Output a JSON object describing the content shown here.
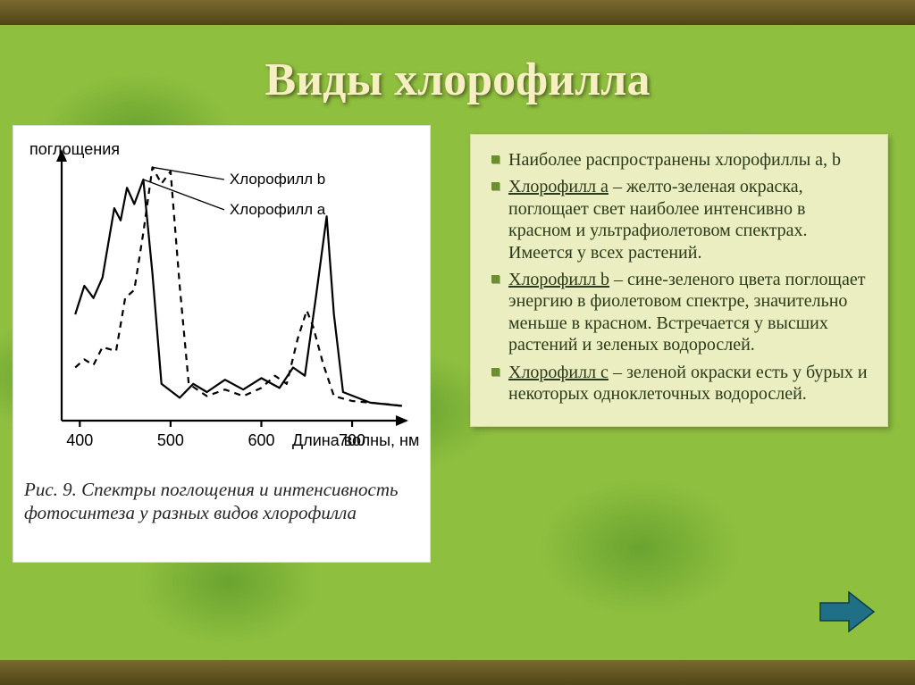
{
  "slide": {
    "title": "Виды хлорофилла",
    "background_base": "#8fbf3f",
    "bar_color_top": "#7a6a2e",
    "bar_color_bottom": "#4f4518",
    "title_color": "#f5efc2"
  },
  "chart": {
    "type": "line",
    "background_color": "#ffffff",
    "axis_color": "#000000",
    "line_width": 2.2,
    "y_axis_label": "поглощения",
    "x_axis_label": "Длина волны, нм",
    "label_fontsize": 18,
    "xlim": [
      380,
      760
    ],
    "x_ticks": [
      400,
      500,
      600,
      700
    ],
    "series": [
      {
        "name": "Хлорофилл а",
        "callout_label": "Хлорофилл а",
        "style": "solid",
        "color": "#000000",
        "points": [
          [
            395,
            130
          ],
          [
            405,
            165
          ],
          [
            415,
            150
          ],
          [
            425,
            175
          ],
          [
            438,
            260
          ],
          [
            445,
            245
          ],
          [
            452,
            285
          ],
          [
            460,
            265
          ],
          [
            470,
            295
          ],
          [
            480,
            180
          ],
          [
            490,
            45
          ],
          [
            510,
            28
          ],
          [
            525,
            45
          ],
          [
            540,
            35
          ],
          [
            560,
            50
          ],
          [
            580,
            38
          ],
          [
            600,
            52
          ],
          [
            620,
            40
          ],
          [
            635,
            65
          ],
          [
            648,
            55
          ],
          [
            660,
            150
          ],
          [
            672,
            250
          ],
          [
            680,
            130
          ],
          [
            690,
            35
          ],
          [
            720,
            22
          ],
          [
            755,
            18
          ]
        ]
      },
      {
        "name": "Хлорофилл b",
        "callout_label": "Хлорофилл b",
        "style": "dashed",
        "dash": "7 6",
        "color": "#000000",
        "points": [
          [
            395,
            65
          ],
          [
            405,
            75
          ],
          [
            415,
            68
          ],
          [
            425,
            90
          ],
          [
            440,
            85
          ],
          [
            450,
            150
          ],
          [
            460,
            160
          ],
          [
            470,
            230
          ],
          [
            480,
            310
          ],
          [
            490,
            290
          ],
          [
            500,
            305
          ],
          [
            510,
            165
          ],
          [
            520,
            45
          ],
          [
            540,
            30
          ],
          [
            560,
            38
          ],
          [
            580,
            30
          ],
          [
            600,
            40
          ],
          [
            615,
            55
          ],
          [
            628,
            45
          ],
          [
            640,
            100
          ],
          [
            650,
            135
          ],
          [
            657,
            115
          ],
          [
            668,
            70
          ],
          [
            680,
            30
          ],
          [
            700,
            24
          ],
          [
            740,
            20
          ],
          [
            755,
            18
          ]
        ]
      }
    ],
    "callouts": [
      {
        "series_index": 1,
        "text_key": "Хлорофилл b",
        "pointer_to": [
          480,
          310
        ],
        "label_at": [
          565,
          295
        ]
      },
      {
        "series_index": 0,
        "text_key": "Хлорофилл а",
        "pointer_to": [
          470,
          295
        ],
        "label_at": [
          565,
          258
        ]
      }
    ],
    "caption_prefix": "Рис. 9.",
    "caption_text": "Спектры поглощения и интенсивность фотосинтеза у разных видов хлорофилла"
  },
  "text_panel": {
    "background_color": "#eaeec0",
    "text_color": "#2b3a1a",
    "bullet_color": "#6b8f2e",
    "fontsize": 20,
    "bullets": [
      {
        "html": "Наиболее распространены хлорофиллы а, b"
      },
      {
        "html": "<span class='uline'>Хлорофилл а</span> – желто-зеленая окраска, поглощает свет наиболее интенсивно в красном и ультрафиолетовом спектрах. Имеется у всех растений."
      },
      {
        "html": "<span class='uline'>Хлорофилл b</span> – сине-зеленого цвета поглощает энергию в фиолетовом спектре, значительно меньше в красном. Встречается у высших растений и зеленых водорослей."
      },
      {
        "html": "<span class='uline'>Хлорофилл с</span> – зеленой окраски есть у бурых и некоторых одноклеточных водорослей."
      }
    ]
  },
  "nav": {
    "next_arrow_fill": "#1f6f86",
    "next_arrow_shadow": "#0e3c49"
  }
}
